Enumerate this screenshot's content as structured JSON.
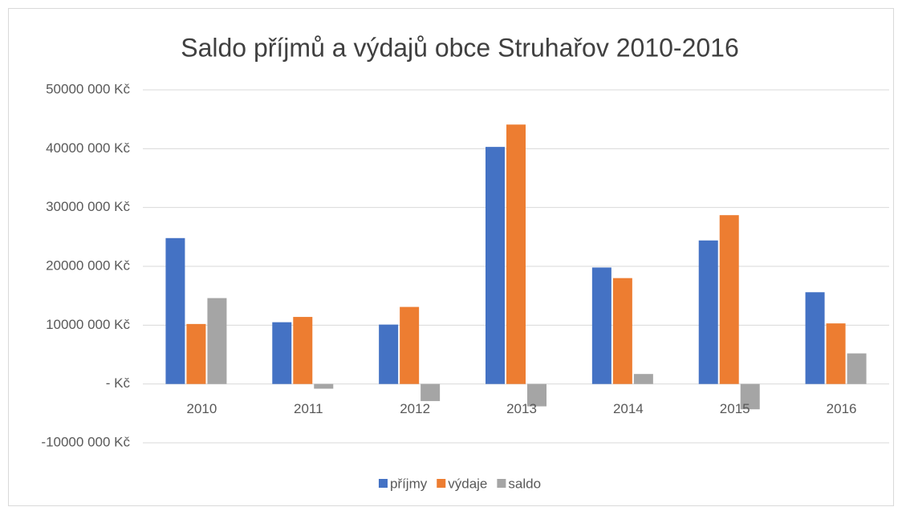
{
  "chart_data": {
    "type": "bar",
    "title": "Saldo příjmů a výdajů obce Struhařov 2010-2016",
    "categories": [
      "2010",
      "2011",
      "2012",
      "2013",
      "2014",
      "2015",
      "2016"
    ],
    "series": [
      {
        "name": "příjmy",
        "color": "#4472c4",
        "values": [
          24800000,
          10500000,
          10100000,
          40300000,
          19800000,
          24400000,
          15600000
        ]
      },
      {
        "name": "výdaje",
        "color": "#ed7d31",
        "values": [
          10200000,
          11400000,
          13100000,
          44100000,
          18000000,
          28700000,
          10300000
        ]
      },
      {
        "name": "saldo",
        "color": "#a5a5a5",
        "values": [
          14600000,
          -800000,
          -2900000,
          -3800000,
          1700000,
          -4300000,
          5200000
        ]
      }
    ],
    "ylim": [
      -10000000,
      50000000
    ],
    "yticks": [
      {
        "value": -10000000,
        "label": "-10000 000 Kč"
      },
      {
        "value": 0,
        "label": "-   Kč"
      },
      {
        "value": 10000000,
        "label": "10000 000 Kč"
      },
      {
        "value": 20000000,
        "label": "20000 000 Kč"
      },
      {
        "value": 30000000,
        "label": "30000 000 Kč"
      },
      {
        "value": 40000000,
        "label": "40000 000 Kč"
      },
      {
        "value": 50000000,
        "label": "50000 000 Kč"
      }
    ],
    "grid": true,
    "legend": "bottom"
  }
}
